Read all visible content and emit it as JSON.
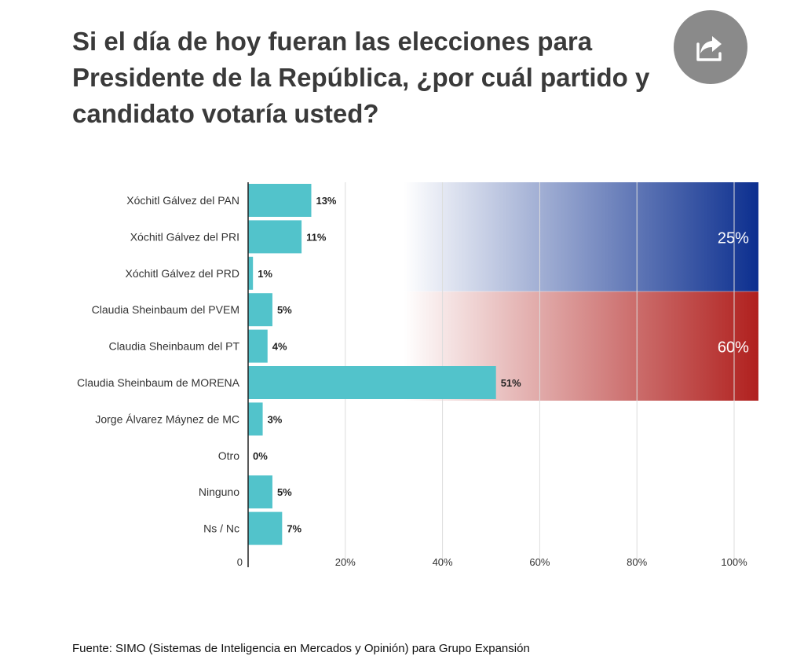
{
  "title": "Si el día de hoy fueran las elecciones para Presidente de la República, ¿por cuál partido y candidato votaría usted?",
  "share_icon": "share-icon",
  "source": "Fuente: SIMO (Sistemas de Inteligencia en Mercados y Opinión) para Grupo Expansión",
  "colors": {
    "bar": "#52c3cb",
    "coalition_blue": "#0c2f8f",
    "coalition_red": "#b0201e",
    "grid": "#dcdcdc",
    "axis": "#222222",
    "label": "#333333",
    "share_button": "#8a8a8a"
  },
  "chart_data": {
    "type": "bar",
    "orientation": "horizontal",
    "categories": [
      "Xóchitl Gálvez del PAN",
      "Xóchitl Gálvez del PRI",
      "Xóchitl Gálvez del PRD",
      "Claudia Sheinbaum del PVEM",
      "Claudia Sheinbaum del PT",
      "Claudia Sheinbaum de MORENA",
      "Jorge Álvarez Máynez de MC",
      "Otro",
      "Ninguno",
      "Ns / Nc"
    ],
    "values": [
      13,
      11,
      1,
      5,
      4,
      51,
      3,
      0,
      5,
      7
    ],
    "value_labels": [
      "13%",
      "11%",
      "1%",
      "5%",
      "4%",
      "51%",
      "3%",
      "0%",
      "5%",
      "7%"
    ],
    "xlim": [
      0,
      105
    ],
    "xticks": [
      0,
      20,
      40,
      60,
      80,
      100
    ],
    "xtick_labels": [
      "0",
      "20%",
      "40%",
      "60%",
      "80%",
      "100%"
    ],
    "grid": true,
    "coalition_totals": [
      {
        "label": "25%",
        "value": 25,
        "rows": [
          0,
          2
        ],
        "color": "blue"
      },
      {
        "label": "60%",
        "value": 60,
        "rows": [
          3,
          5
        ],
        "color": "red"
      }
    ]
  }
}
